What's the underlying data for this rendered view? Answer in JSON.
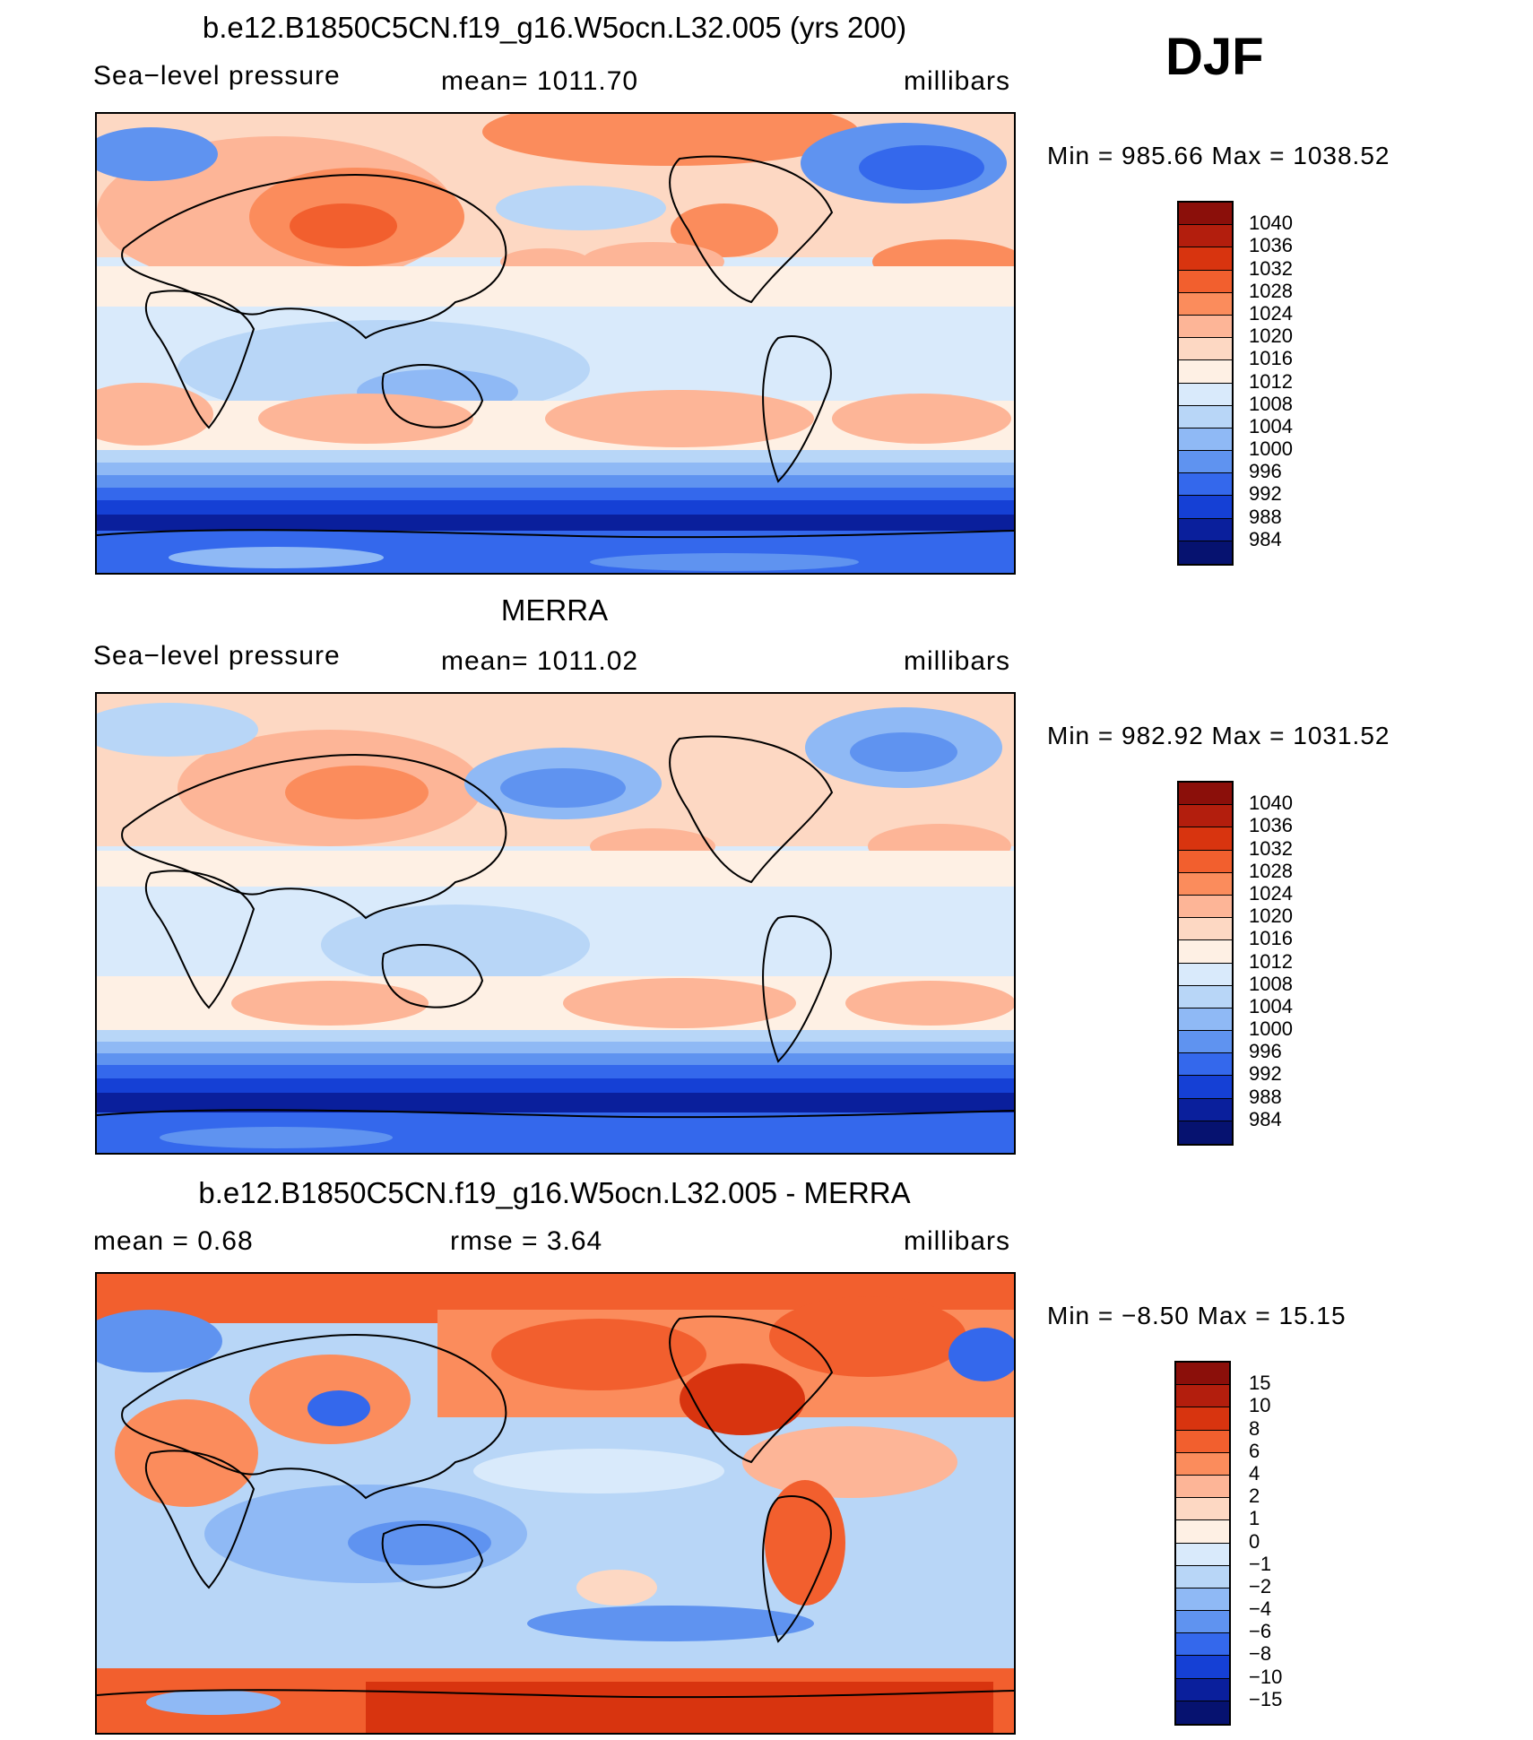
{
  "season": "DJF",
  "panels": [
    {
      "id": "model",
      "title": "b.e12.B1850C5CN.f19_g16.W5ocn.L32.005 (yrs 200)",
      "left_label": "Sea−level pressure",
      "center_label": "mean=  1011.70",
      "units": "millibars",
      "minmax": "Min  =  985.66  Max  =  1038.52",
      "colorbar": {
        "labels": [
          "1040",
          "1036",
          "1032",
          "1028",
          "1024",
          "1020",
          "1016",
          "1012",
          "1008",
          "1004",
          "1000",
          "996",
          "992",
          "988",
          "984"
        ],
        "colors": [
          "#8b0f0a",
          "#b31e0d",
          "#d8340f",
          "#f25f2e",
          "#fb8c5c",
          "#fdb597",
          "#fdd8c3",
          "#fef0e4",
          "#d9eafb",
          "#b8d6f7",
          "#8fb9f5",
          "#5f93f0",
          "#3468ec",
          "#1540d5",
          "#0a1f9c",
          "#061270"
        ]
      }
    },
    {
      "id": "obs",
      "title": "MERRA",
      "left_label": "Sea−level pressure",
      "center_label": "mean=  1011.02",
      "units": "millibars",
      "minmax": "Min  =  982.92  Max  =  1031.52",
      "colorbar": {
        "labels": [
          "1040",
          "1036",
          "1032",
          "1028",
          "1024",
          "1020",
          "1016",
          "1012",
          "1008",
          "1004",
          "1000",
          "996",
          "992",
          "988",
          "984"
        ],
        "colors": [
          "#8b0f0a",
          "#b31e0d",
          "#d8340f",
          "#f25f2e",
          "#fb8c5c",
          "#fdb597",
          "#fdd8c3",
          "#fef0e4",
          "#d9eafb",
          "#b8d6f7",
          "#8fb9f5",
          "#5f93f0",
          "#3468ec",
          "#1540d5",
          "#0a1f9c",
          "#061270"
        ]
      }
    },
    {
      "id": "diff",
      "title": "b.e12.B1850C5CN.f19_g16.W5ocn.L32.005 - MERRA",
      "left_label": "mean  =     0.68",
      "center_label": "rmse  =     3.64",
      "units": "millibars",
      "minmax": "Min  =   −8.50  Max  =    15.15",
      "colorbar": {
        "labels": [
          "15",
          "10",
          "8",
          "6",
          "4",
          "2",
          "1",
          "0",
          "−1",
          "−2",
          "−4",
          "−6",
          "−8",
          "−10",
          "−15"
        ],
        "colors": [
          "#8b0f0a",
          "#b31e0d",
          "#d8340f",
          "#f25f2e",
          "#fb8c5c",
          "#fdb597",
          "#fdd8c3",
          "#fef0e4",
          "#d9eafb",
          "#b8d6f7",
          "#8fb9f5",
          "#5f93f0",
          "#3468ec",
          "#1540d5",
          "#0a1f9c",
          "#061270"
        ]
      }
    }
  ]
}
